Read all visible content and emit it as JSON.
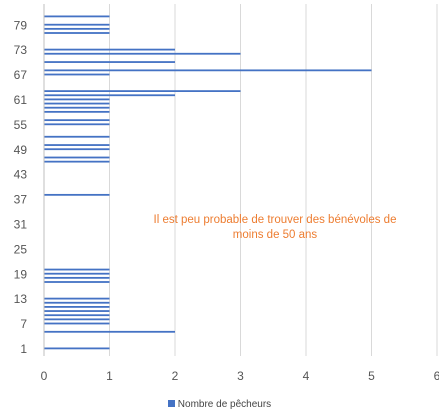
{
  "chart_data": {
    "type": "bar",
    "orientation": "horizontal",
    "title": "",
    "xlabel": "",
    "ylabel": "",
    "xlim": [
      0,
      6
    ],
    "ylim": [
      1,
      81
    ],
    "x_ticks": [
      "0",
      "1",
      "2",
      "3",
      "4",
      "5",
      "6"
    ],
    "y_ticks": [
      "1",
      "7",
      "13",
      "19",
      "25",
      "31",
      "37",
      "43",
      "49",
      "55",
      "61",
      "67",
      "73",
      "79"
    ],
    "grid": "vertical",
    "legend_position": "bottom",
    "colors": {
      "bar": "#4472c4",
      "annotation": "#ed7d31",
      "grid": "#d9d9d9"
    },
    "series": [
      {
        "name": "Nombre de pêcheurs",
        "points": [
          {
            "age": 1,
            "count": 1
          },
          {
            "age": 5,
            "count": 2
          },
          {
            "age": 7,
            "count": 1
          },
          {
            "age": 8,
            "count": 1
          },
          {
            "age": 9,
            "count": 1
          },
          {
            "age": 10,
            "count": 1
          },
          {
            "age": 11,
            "count": 1
          },
          {
            "age": 12,
            "count": 1
          },
          {
            "age": 13,
            "count": 1
          },
          {
            "age": 17,
            "count": 1
          },
          {
            "age": 18,
            "count": 1
          },
          {
            "age": 19,
            "count": 1
          },
          {
            "age": 20,
            "count": 1
          },
          {
            "age": 38,
            "count": 1
          },
          {
            "age": 46,
            "count": 1
          },
          {
            "age": 47,
            "count": 1
          },
          {
            "age": 49,
            "count": 1
          },
          {
            "age": 50,
            "count": 1
          },
          {
            "age": 52,
            "count": 1
          },
          {
            "age": 55,
            "count": 1
          },
          {
            "age": 56,
            "count": 1
          },
          {
            "age": 58,
            "count": 1
          },
          {
            "age": 59,
            "count": 1
          },
          {
            "age": 60,
            "count": 1
          },
          {
            "age": 61,
            "count": 1
          },
          {
            "age": 62,
            "count": 2
          },
          {
            "age": 63,
            "count": 3
          },
          {
            "age": 67,
            "count": 1
          },
          {
            "age": 68,
            "count": 5
          },
          {
            "age": 70,
            "count": 2
          },
          {
            "age": 72,
            "count": 3
          },
          {
            "age": 73,
            "count": 2
          },
          {
            "age": 77,
            "count": 1
          },
          {
            "age": 78,
            "count": 1
          },
          {
            "age": 79,
            "count": 1
          },
          {
            "age": 81,
            "count": 1
          }
        ]
      }
    ],
    "annotation": "Il est peu probable de trouver des bénévoles de moins de 50 ans"
  }
}
